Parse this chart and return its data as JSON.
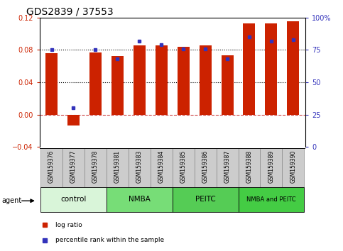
{
  "title": "GDS2839 / 37553",
  "samples": [
    "GSM159376",
    "GSM159377",
    "GSM159378",
    "GSM159381",
    "GSM159383",
    "GSM159384",
    "GSM159385",
    "GSM159386",
    "GSM159387",
    "GSM159388",
    "GSM159389",
    "GSM159390"
  ],
  "log_ratio": [
    0.076,
    -0.014,
    0.077,
    0.072,
    0.086,
    0.086,
    0.084,
    0.086,
    0.073,
    0.113,
    0.113,
    0.115
  ],
  "percentile": [
    75,
    30,
    75,
    68,
    82,
    79,
    76,
    76,
    68,
    85,
    82,
    83
  ],
  "groups": [
    {
      "label": "control",
      "start": 0,
      "end": 2,
      "color": "#d9f5d9"
    },
    {
      "label": "NMBA",
      "start": 3,
      "end": 5,
      "color": "#77dd77"
    },
    {
      "label": "PEITC",
      "start": 6,
      "end": 8,
      "color": "#55cc55"
    },
    {
      "label": "NMBA and PEITC",
      "start": 9,
      "end": 11,
      "color": "#44cc44"
    }
  ],
  "ylim_left": [
    -0.04,
    0.12
  ],
  "ylim_right": [
    0,
    100
  ],
  "left_yticks": [
    -0.04,
    0,
    0.04,
    0.08,
    0.12
  ],
  "right_yticks": [
    0,
    25,
    50,
    75,
    100
  ],
  "right_yticklabels": [
    "0",
    "25",
    "50",
    "75",
    "100%"
  ],
  "bar_color": "#cc2200",
  "dot_color": "#3333bb",
  "hline_zero_color": "#cc4444",
  "dotline_vals": [
    0.04,
    0.08
  ],
  "dotline_color": "black",
  "agent_label": "agent",
  "legend_bar_label": "log ratio",
  "legend_dot_label": "percentile rank within the sample",
  "title_fontsize": 10,
  "tick_fontsize": 7,
  "sample_fontsize": 5.5,
  "group_fontsize": 7.5,
  "legend_fontsize": 6.5,
  "agent_fontsize": 7,
  "bar_width": 0.55,
  "sample_bg_color": "#cccccc",
  "sample_edge_color": "#888888"
}
